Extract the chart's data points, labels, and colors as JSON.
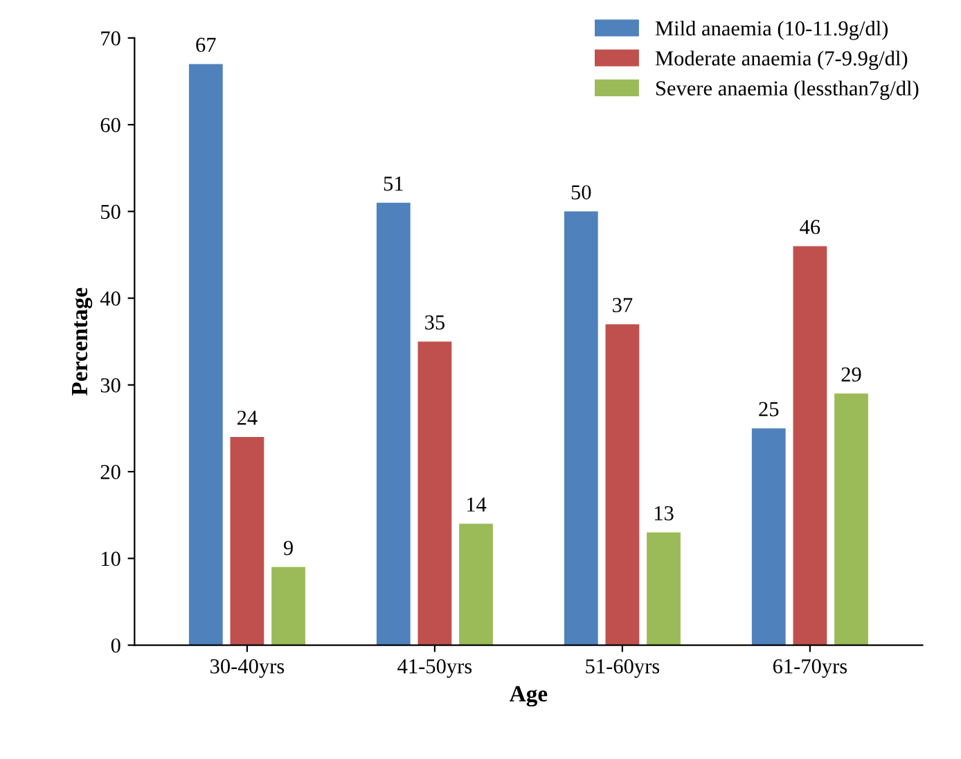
{
  "chart_data": {
    "type": "bar",
    "xlabel": "Age",
    "ylabel": "Percentage",
    "categories": [
      "30-40yrs",
      "41-50yrs",
      "51-60yrs",
      "61-70yrs"
    ],
    "series": [
      {
        "name": "Mild anaemia (10-11.9g/dl)",
        "color": "#4f81bd",
        "values": [
          67,
          51,
          50,
          25
        ]
      },
      {
        "name": "Moderate anaemia (7-9.9g/dl)",
        "color": "#c0504d",
        "values": [
          24,
          35,
          37,
          46
        ]
      },
      {
        "name": "Severe anaemia (lessthan7g/dl)",
        "color": "#9bbb59",
        "values": [
          9,
          14,
          13,
          29
        ]
      }
    ],
    "ylim": [
      0,
      70
    ],
    "yticks": [
      0,
      10,
      20,
      30,
      40,
      50,
      60,
      70
    ],
    "data_labels": true,
    "legend": "top right",
    "grid": false
  }
}
